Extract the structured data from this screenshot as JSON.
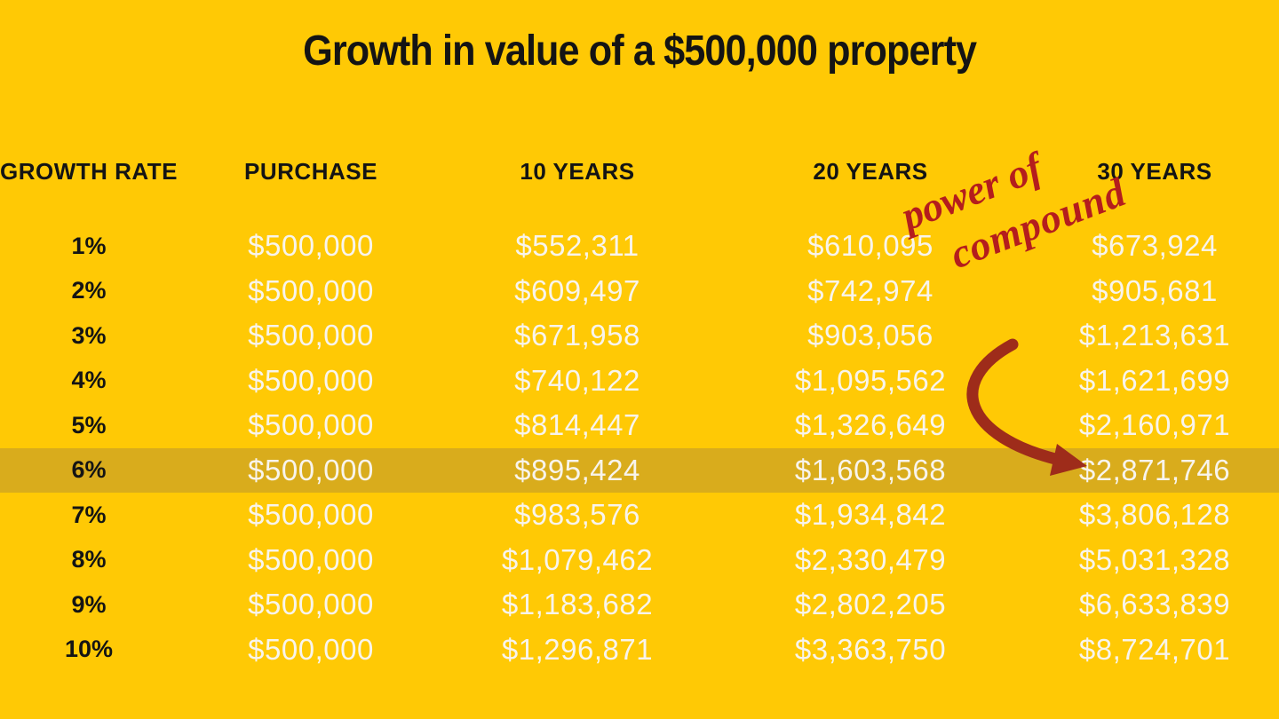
{
  "title": "Growth in value of a $500,000 property",
  "annotation": {
    "line1": "power of",
    "line2": "compound"
  },
  "colors": {
    "background": "#FFC905",
    "highlight_row": "#D9AC1C",
    "annotation_red": "#B41D1D",
    "arrow_red": "#9E2C1A",
    "value_text": "#F8F4EC",
    "heading_text": "#141414"
  },
  "chart_data": {
    "type": "table",
    "title": "Growth in value of a $500,000 property",
    "columns": [
      "GROWTH RATE",
      "PURCHASE",
      "10 YEARS",
      "20 YEARS",
      "30 YEARS"
    ],
    "rows": [
      [
        "1%",
        "$500,000",
        "$552,311",
        "$610,095",
        "$673,924"
      ],
      [
        "2%",
        "$500,000",
        "$609,497",
        "$742,974",
        "$905,681"
      ],
      [
        "3%",
        "$500,000",
        "$671,958",
        "$903,056",
        "$1,213,631"
      ],
      [
        "4%",
        "$500,000",
        "$740,122",
        "$1,095,562",
        "$1,621,699"
      ],
      [
        "5%",
        "$500,000",
        "$814,447",
        "$1,326,649",
        "$2,160,971"
      ],
      [
        "6%",
        "$500,000",
        "$895,424",
        "$1,603,568",
        "$2,871,746"
      ],
      [
        "7%",
        "$500,000",
        "$983,576",
        "$1,934,842",
        "$3,806,128"
      ],
      [
        "8%",
        "$500,000",
        "$1,079,462",
        "$2,330,479",
        "$5,031,328"
      ],
      [
        "9%",
        "$500,000",
        "$1,183,682",
        "$2,802,205",
        "$6,633,839"
      ],
      [
        "10%",
        "$500,000",
        "$1,296,871",
        "$3,363,750",
        "$8,724,701"
      ]
    ],
    "highlighted_row_index": 5,
    "highlighted_growth_rate": "6%",
    "annotation_text": "power of compound",
    "annotation_points_to": "$2,871,746",
    "grid": false,
    "legend_position": "none"
  }
}
